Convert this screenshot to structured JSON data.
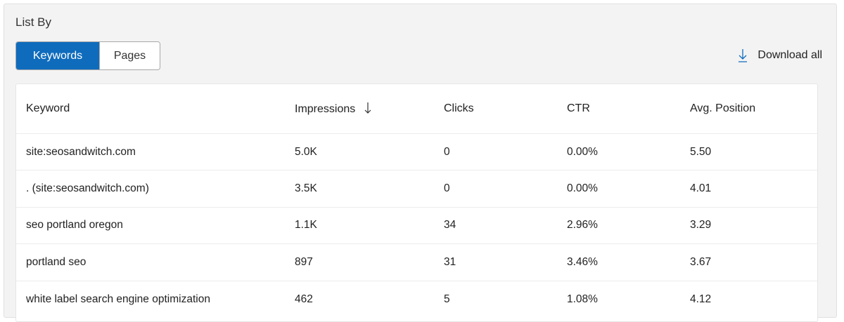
{
  "title": "List By",
  "toggle": {
    "options": [
      "Keywords",
      "Pages"
    ],
    "selected": "Keywords"
  },
  "download_label": "Download all",
  "accent": "#0f6cbd",
  "table": {
    "headers": [
      "Keyword",
      "Impressions",
      "Clicks",
      "CTR",
      "Avg. Position"
    ],
    "sort": {
      "column": "Impressions",
      "direction": "descending"
    },
    "rows": [
      [
        "site:seosandwitch.com",
        "5.0K",
        "0",
        "0.00%",
        "5.50"
      ],
      [
        ". (site:seosandwitch.com)",
        "3.5K",
        "0",
        "0.00%",
        "4.01"
      ],
      [
        "seo portland oregon",
        "1.1K",
        "34",
        "2.96%",
        "3.29"
      ],
      [
        "portland seo",
        "897",
        "31",
        "3.46%",
        "3.67"
      ],
      [
        "white label search engine optimization",
        "462",
        "5",
        "1.08%",
        "4.12"
      ]
    ]
  }
}
